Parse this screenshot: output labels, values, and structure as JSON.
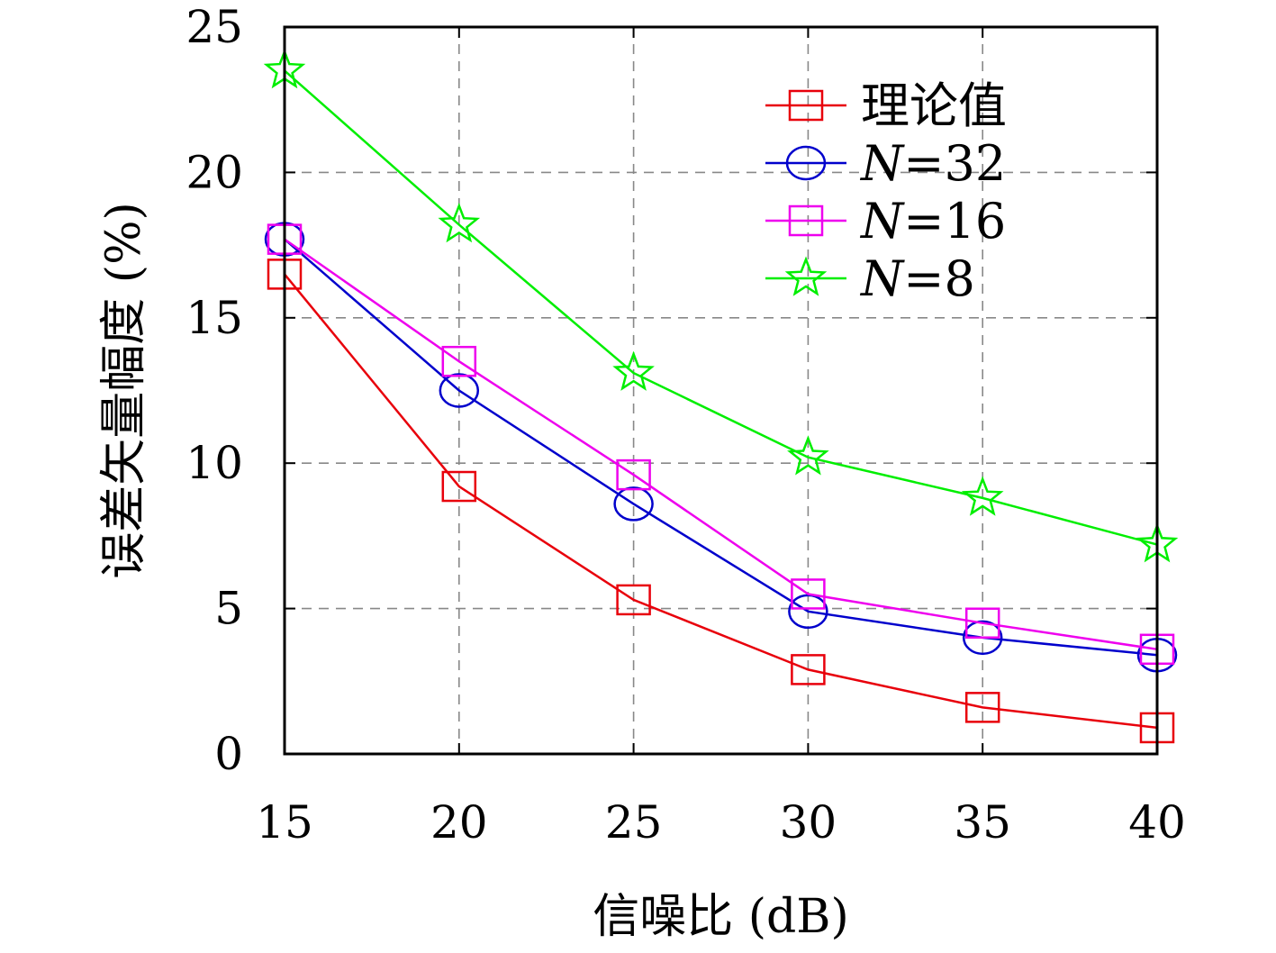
{
  "chart_data": {
    "type": "line",
    "x": [
      15,
      20,
      25,
      30,
      35,
      40
    ],
    "xlabel": "信噪比 (dB)",
    "ylabel": "误差矢量幅度 (%)",
    "xlim": [
      15,
      40
    ],
    "ylim": [
      0,
      25
    ],
    "xticks": [
      "15",
      "20",
      "25",
      "30",
      "35",
      "40"
    ],
    "yticks": [
      "0",
      "5",
      "10",
      "15",
      "20",
      "25"
    ],
    "grid": true,
    "legend_position": "top-right",
    "series": [
      {
        "name": "理论值",
        "color": "#e8000b",
        "marker": "square",
        "values": [
          16.5,
          9.2,
          5.3,
          2.9,
          1.6,
          0.9
        ]
      },
      {
        "name": "N=32",
        "color": "#0000cc",
        "marker": "circle",
        "values": [
          17.7,
          12.5,
          8.6,
          4.9,
          4.0,
          3.4
        ]
      },
      {
        "name": "N=16",
        "color": "#ee00ee",
        "marker": "square",
        "values": [
          17.7,
          13.5,
          9.6,
          5.5,
          4.5,
          3.6
        ]
      },
      {
        "name": "N=8",
        "color": "#00ee00",
        "marker": "star",
        "values": [
          23.5,
          18.2,
          13.1,
          10.2,
          8.8,
          7.2
        ]
      }
    ]
  }
}
